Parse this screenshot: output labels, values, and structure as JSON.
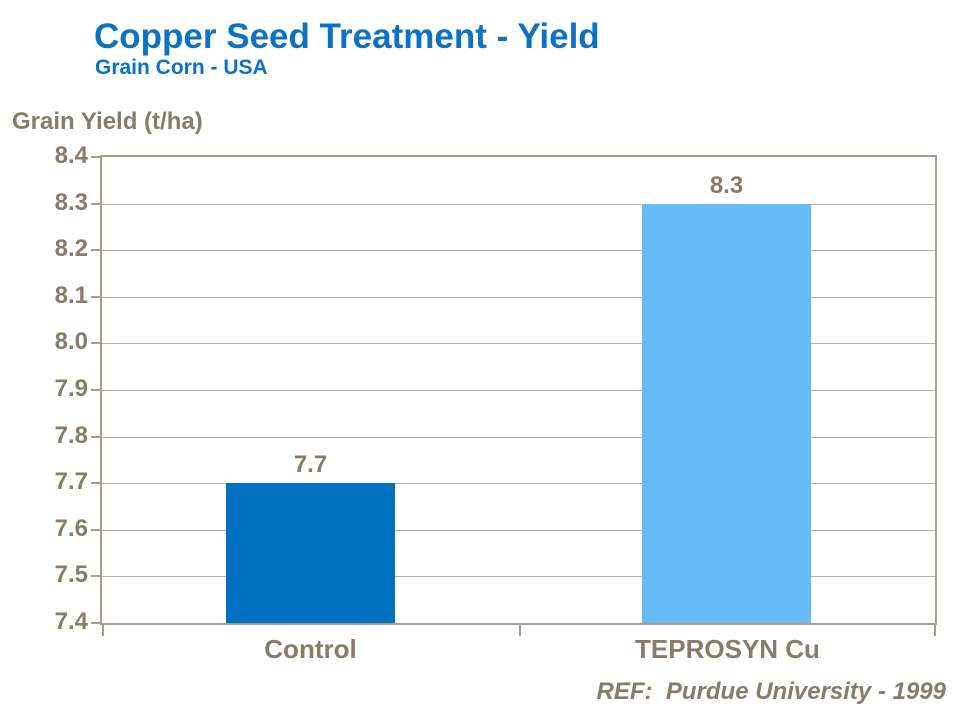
{
  "header": {
    "title": "Copper Seed Treatment - Yield",
    "subtitle": "Grain Corn - USA"
  },
  "footer": {
    "reference": "REF:  Purdue University - 1999"
  },
  "chart_data": {
    "type": "bar",
    "title": "Copper Seed Treatment - Yield",
    "subtitle": "Grain Corn - USA",
    "ylabel": "Grain Yield (t/ha)",
    "xlabel": "",
    "categories": [
      "Control",
      "TEPROSYN Cu"
    ],
    "values": [
      7.7,
      8.3
    ],
    "value_labels": [
      "7.7",
      "8.3"
    ],
    "ylim": [
      7.4,
      8.4
    ],
    "ytick_step": 0.1,
    "ytick_labels": [
      "8.4",
      "8.3",
      "8.2",
      "8.1",
      "8.0",
      "7.9",
      "7.8",
      "7.7",
      "7.6",
      "7.5",
      "7.4"
    ],
    "grid": true,
    "legend": null,
    "bar_colors": [
      "#0070c0",
      "#66bbf7"
    ]
  },
  "colors": {
    "title_blue": "#0b72c4",
    "text_brown": "#8a7a68",
    "axis_line": "#a59d91",
    "gridline": "#b5ada2",
    "bar_control": "#0070c0",
    "bar_teprosyn": "#66bbf7",
    "background": "#ffffff"
  }
}
